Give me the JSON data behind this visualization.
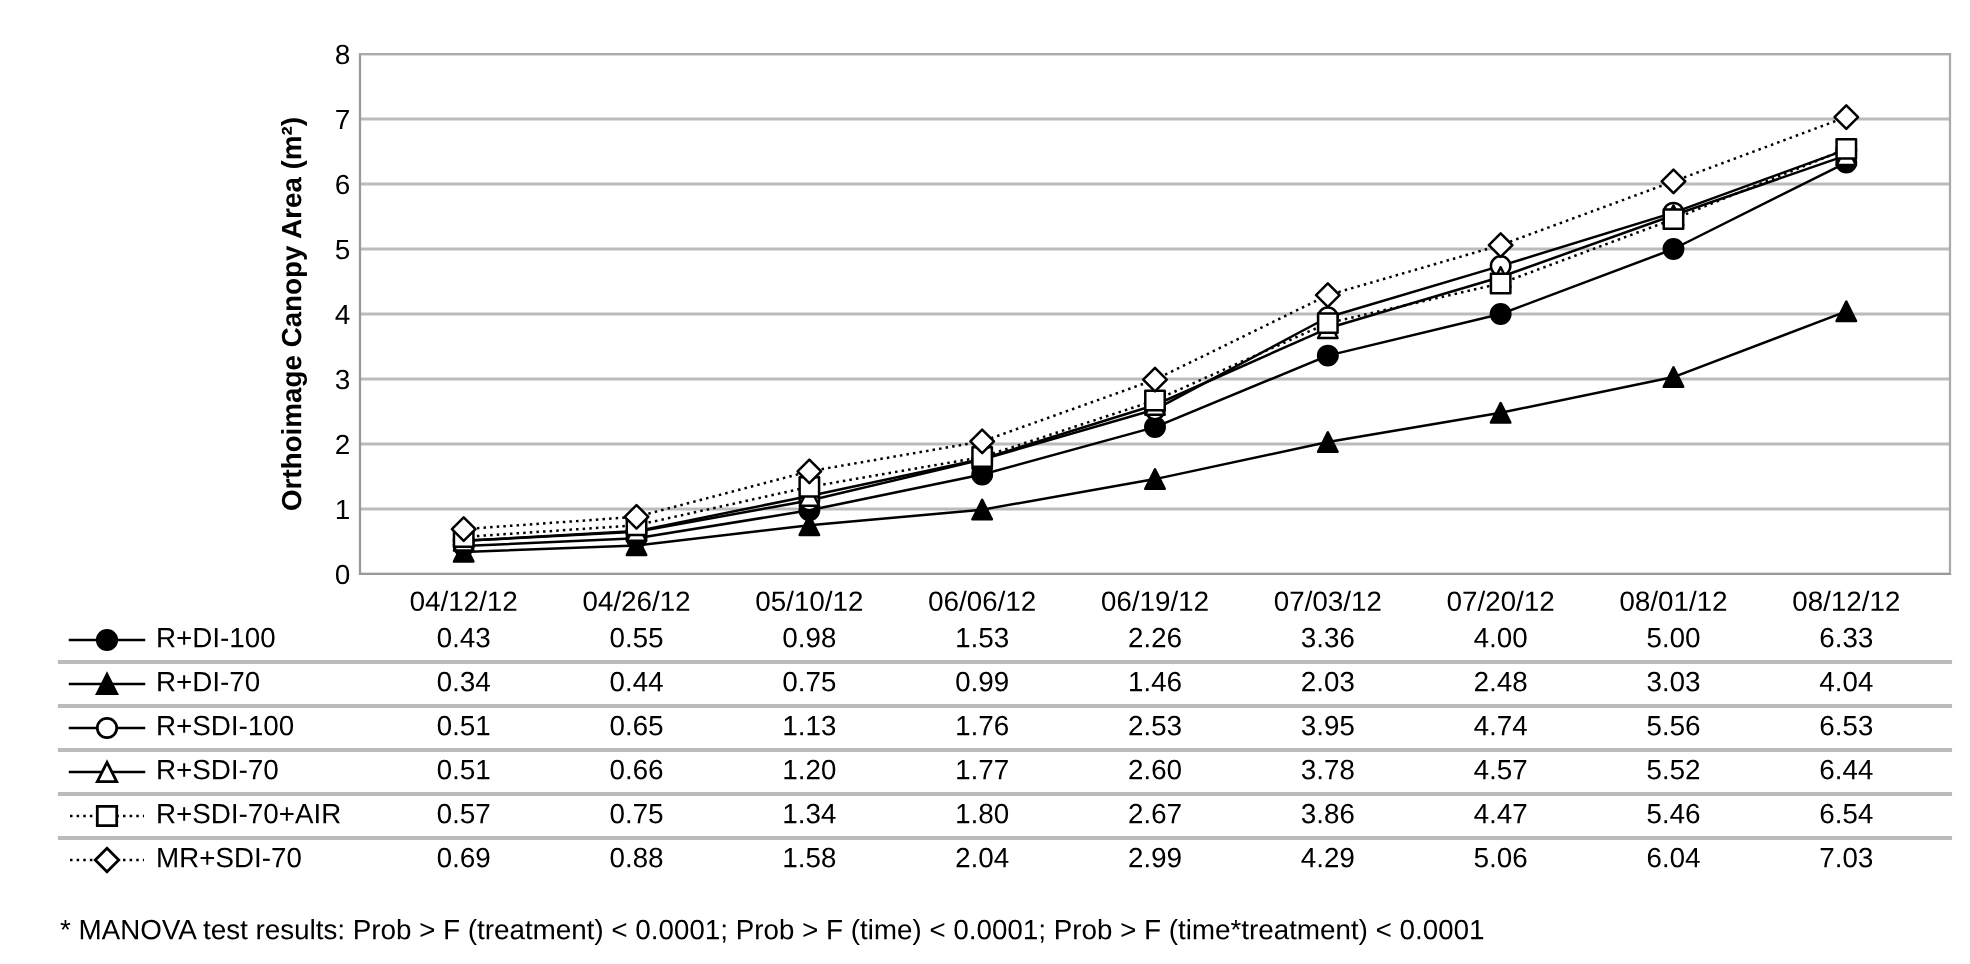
{
  "chart_data": {
    "type": "line",
    "ylabel": "Orthoimage Canopy Area (m²)",
    "categories": [
      "04/12/12",
      "04/26/12",
      "05/10/12",
      "06/06/12",
      "06/19/12",
      "07/03/12",
      "07/20/12",
      "08/01/12",
      "08/12/12"
    ],
    "series": [
      {
        "name": "R+DI-100",
        "color": "#000000",
        "marker": "circle",
        "line_style": "solid",
        "values": [
          0.43,
          0.55,
          0.98,
          1.53,
          2.26,
          3.36,
          4.0,
          5.0,
          6.33
        ],
        "value_labels": [
          "0.43",
          "0.55",
          "0.98",
          "1.53",
          "2.26",
          "3.36",
          "4.00",
          "5.00",
          "6.33"
        ]
      },
      {
        "name": "R+DI-70",
        "color": "#000000",
        "marker": "triangle",
        "line_style": "solid",
        "values": [
          0.34,
          0.44,
          0.75,
          0.99,
          1.46,
          2.03,
          2.48,
          3.03,
          4.04
        ],
        "value_labels": [
          "0.34",
          "0.44",
          "0.75",
          "0.99",
          "1.46",
          "2.03",
          "2.48",
          "3.03",
          "4.04"
        ]
      },
      {
        "name": "R+SDI-100",
        "color": "#000000",
        "colors": [
          "#ffffff",
          "#ffffff",
          "#ffffff",
          "#ffffff",
          "#ffffff",
          "#ffffff",
          "#ffffff",
          "#ffffff",
          "#ffffff"
        ],
        "marker": "circle",
        "line_style": "solid",
        "values": [
          0.51,
          0.65,
          1.13,
          1.76,
          2.53,
          3.95,
          4.74,
          5.56,
          6.53
        ],
        "value_labels": [
          "0.51",
          "0.65",
          "1.13",
          "1.76",
          "2.53",
          "3.95",
          "4.74",
          "5.56",
          "6.53"
        ]
      },
      {
        "name": "R+SDI-70",
        "color": "#000000",
        "colors": [
          "#ffffff",
          "#ffffff",
          "#ffffff",
          "#ffffff",
          "#ffffff",
          "#ffffff",
          "#ffffff",
          "#ffffff",
          "#ffffff"
        ],
        "marker": "triangle",
        "line_style": "solid",
        "values": [
          0.51,
          0.66,
          1.2,
          1.77,
          2.6,
          3.78,
          4.57,
          5.52,
          6.44
        ],
        "value_labels": [
          "0.51",
          "0.66",
          "1.20",
          "1.77",
          "2.60",
          "3.78",
          "4.57",
          "5.52",
          "6.44"
        ]
      },
      {
        "name": "R+SDI-70+AIR",
        "color": "#000000",
        "colors": [
          "#ffffff",
          "#ffffff",
          "#ffffff",
          "#ffffff",
          "#ffffff",
          "#ffffff",
          "#ffffff",
          "#ffffff",
          "#ffffff"
        ],
        "marker": "square",
        "line_style": "dotted",
        "values": [
          0.57,
          0.75,
          1.34,
          1.8,
          2.67,
          3.86,
          4.47,
          5.46,
          6.54
        ],
        "value_labels": [
          "0.57",
          "0.75",
          "1.34",
          "1.80",
          "2.67",
          "3.86",
          "4.47",
          "5.46",
          "6.54"
        ]
      },
      {
        "name": "MR+SDI-70",
        "color": "#000000",
        "colors": [
          "#ffffff",
          "#ffffff",
          "#ffffff",
          "#ffffff",
          "#ffffff",
          "#ffffff",
          "#ffffff",
          "#ffffff",
          "#ffffff"
        ],
        "marker": "diamond",
        "line_style": "dotted",
        "values": [
          0.69,
          0.88,
          1.58,
          2.04,
          2.99,
          4.29,
          5.06,
          6.04,
          7.03
        ],
        "value_labels": [
          "0.69",
          "0.88",
          "1.58",
          "2.04",
          "2.99",
          "4.29",
          "5.06",
          "6.04",
          "7.03"
        ]
      }
    ],
    "ylim": [
      0,
      8
    ],
    "yticks": [
      0,
      1,
      2,
      3,
      4,
      5,
      6,
      7,
      8
    ],
    "grid": "y",
    "legend": "bottom left",
    "annotations": [
      "* MANOVA test results: Prob > F (treatment) < 0.0001; Prob > F (time) < 0.0001; Prob > F (time*treatment) < 0.0001"
    ]
  }
}
